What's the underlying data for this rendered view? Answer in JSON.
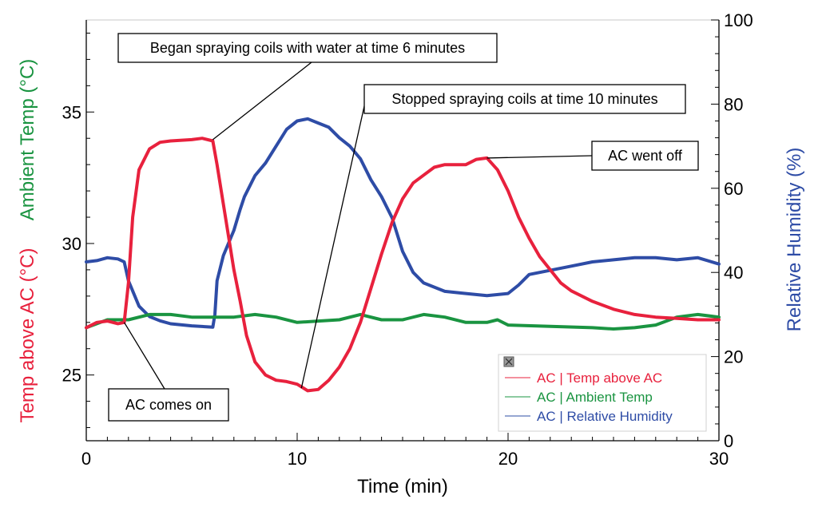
{
  "chart_data": {
    "type": "line",
    "xlabel": "Time (min)",
    "ylabel_left_primary": "Temp above AC (°C)",
    "ylabel_left_secondary": "Ambient Temp (°C)",
    "ylabel_right": "Relative Humidity (%)",
    "xlim": [
      0,
      30
    ],
    "ylim_left": [
      22.5,
      38.5
    ],
    "ylim_right": [
      0,
      100
    ],
    "x_ticks": [
      0,
      10,
      20,
      30
    ],
    "y_left_ticks": [
      25,
      30,
      35
    ],
    "y_right_ticks": [
      0,
      20,
      40,
      60,
      80,
      100
    ],
    "grid": false,
    "legend_position": "bottom-right",
    "series": [
      {
        "name": "AC | Temp above AC",
        "axis": "left",
        "color": "#e8213d",
        "points": [
          [
            0,
            26.8
          ],
          [
            0.5,
            27.0
          ],
          [
            1.0,
            27.05
          ],
          [
            1.5,
            26.95
          ],
          [
            1.8,
            27.0
          ],
          [
            2.0,
            28.5
          ],
          [
            2.2,
            31.0
          ],
          [
            2.5,
            32.8
          ],
          [
            3.0,
            33.6
          ],
          [
            3.5,
            33.85
          ],
          [
            4.0,
            33.9
          ],
          [
            5.0,
            33.95
          ],
          [
            5.5,
            34.0
          ],
          [
            6.0,
            33.9
          ],
          [
            6.2,
            33.0
          ],
          [
            6.5,
            31.5
          ],
          [
            7.0,
            29.0
          ],
          [
            7.3,
            27.8
          ],
          [
            7.6,
            26.5
          ],
          [
            8.0,
            25.5
          ],
          [
            8.5,
            25.0
          ],
          [
            9.0,
            24.8
          ],
          [
            9.5,
            24.75
          ],
          [
            10.0,
            24.65
          ],
          [
            10.5,
            24.4
          ],
          [
            11.0,
            24.45
          ],
          [
            11.5,
            24.8
          ],
          [
            12.0,
            25.3
          ],
          [
            12.5,
            26.0
          ],
          [
            13.0,
            27.0
          ],
          [
            13.5,
            28.3
          ],
          [
            14.0,
            29.6
          ],
          [
            14.5,
            30.8
          ],
          [
            15.0,
            31.7
          ],
          [
            15.5,
            32.3
          ],
          [
            16.0,
            32.6
          ],
          [
            16.5,
            32.9
          ],
          [
            17.0,
            33.0
          ],
          [
            18.0,
            33.0
          ],
          [
            18.5,
            33.2
          ],
          [
            19.0,
            33.25
          ],
          [
            19.5,
            32.8
          ],
          [
            20.0,
            32.0
          ],
          [
            20.5,
            31.0
          ],
          [
            21.0,
            30.2
          ],
          [
            21.5,
            29.5
          ],
          [
            22.0,
            29.0
          ],
          [
            22.5,
            28.5
          ],
          [
            23.0,
            28.2
          ],
          [
            24.0,
            27.8
          ],
          [
            25.0,
            27.5
          ],
          [
            26.0,
            27.3
          ],
          [
            27.0,
            27.2
          ],
          [
            28.0,
            27.15
          ],
          [
            29.0,
            27.1
          ],
          [
            30.0,
            27.1
          ]
        ]
      },
      {
        "name": "AC | Ambient Temp",
        "axis": "left",
        "color": "#1a9441",
        "points": [
          [
            0,
            26.8
          ],
          [
            1.0,
            27.1
          ],
          [
            2.0,
            27.1
          ],
          [
            3.0,
            27.3
          ],
          [
            4.0,
            27.3
          ],
          [
            5.0,
            27.2
          ],
          [
            6.0,
            27.2
          ],
          [
            7.0,
            27.2
          ],
          [
            8.0,
            27.3
          ],
          [
            9.0,
            27.2
          ],
          [
            10.0,
            27.0
          ],
          [
            11.0,
            27.05
          ],
          [
            12.0,
            27.1
          ],
          [
            13.0,
            27.3
          ],
          [
            14.0,
            27.1
          ],
          [
            15.0,
            27.1
          ],
          [
            16.0,
            27.3
          ],
          [
            17.0,
            27.2
          ],
          [
            18.0,
            27.0
          ],
          [
            19.0,
            27.0
          ],
          [
            19.5,
            27.1
          ],
          [
            20.0,
            26.9
          ],
          [
            22.0,
            26.85
          ],
          [
            24.0,
            26.8
          ],
          [
            25.0,
            26.75
          ],
          [
            26.0,
            26.8
          ],
          [
            27.0,
            26.9
          ],
          [
            28.0,
            27.2
          ],
          [
            29.0,
            27.3
          ],
          [
            30.0,
            27.2
          ]
        ]
      },
      {
        "name": "AC | Relative Humidity",
        "axis": "right",
        "color": "#2e4ca6",
        "points": [
          [
            0,
            42.5
          ],
          [
            0.5,
            42.8
          ],
          [
            1.0,
            43.5
          ],
          [
            1.5,
            43.2
          ],
          [
            1.8,
            42.5
          ],
          [
            2.0,
            38.0
          ],
          [
            2.5,
            32.0
          ],
          [
            3.0,
            29.5
          ],
          [
            3.5,
            28.5
          ],
          [
            4.0,
            27.8
          ],
          [
            5.0,
            27.3
          ],
          [
            6.0,
            27.0
          ],
          [
            6.1,
            30.0
          ],
          [
            6.2,
            38.0
          ],
          [
            6.5,
            44.0
          ],
          [
            7.0,
            50.0
          ],
          [
            7.3,
            55.0
          ],
          [
            7.5,
            58.0
          ],
          [
            8.0,
            63.0
          ],
          [
            8.5,
            66.0
          ],
          [
            9.0,
            70.0
          ],
          [
            9.5,
            74.0
          ],
          [
            10.0,
            76.0
          ],
          [
            10.5,
            76.5
          ],
          [
            11.0,
            75.5
          ],
          [
            11.5,
            74.5
          ],
          [
            12.0,
            72.0
          ],
          [
            12.5,
            70.0
          ],
          [
            13.0,
            67.0
          ],
          [
            13.5,
            62.0
          ],
          [
            14.0,
            58.0
          ],
          [
            14.5,
            53.0
          ],
          [
            15.0,
            45.0
          ],
          [
            15.5,
            40.0
          ],
          [
            16.0,
            37.5
          ],
          [
            16.5,
            36.5
          ],
          [
            17.0,
            35.5
          ],
          [
            18.0,
            35.0
          ],
          [
            19.0,
            34.5
          ],
          [
            20.0,
            35.0
          ],
          [
            20.5,
            37.0
          ],
          [
            21.0,
            39.5
          ],
          [
            22.0,
            40.5
          ],
          [
            23.0,
            41.5
          ],
          [
            24.0,
            42.5
          ],
          [
            25.0,
            43.0
          ],
          [
            26.0,
            43.5
          ],
          [
            27.0,
            43.5
          ],
          [
            28.0,
            43.0
          ],
          [
            29.0,
            43.5
          ],
          [
            30.0,
            42.0
          ]
        ]
      }
    ],
    "annotations": [
      {
        "text": "Began spraying coils with water at time 6 minutes",
        "target": [
          6.0,
          33.95
        ],
        "axis": "left"
      },
      {
        "text": "Stopped spraying coils at time 10 minutes",
        "target": [
          10.2,
          24.5
        ],
        "axis": "left"
      },
      {
        "text": "AC went off",
        "target": [
          19.0,
          33.25
        ],
        "axis": "left"
      },
      {
        "text": "AC comes on",
        "target": [
          1.8,
          27.0
        ],
        "axis": "left"
      }
    ]
  },
  "legend": {
    "items": [
      {
        "label": "AC | Temp above AC",
        "color": "#e8213d"
      },
      {
        "label": "AC | Ambient Temp",
        "color": "#1a9441"
      },
      {
        "label": "AC | Relative Humidity",
        "color": "#2e4ca6"
      }
    ]
  }
}
